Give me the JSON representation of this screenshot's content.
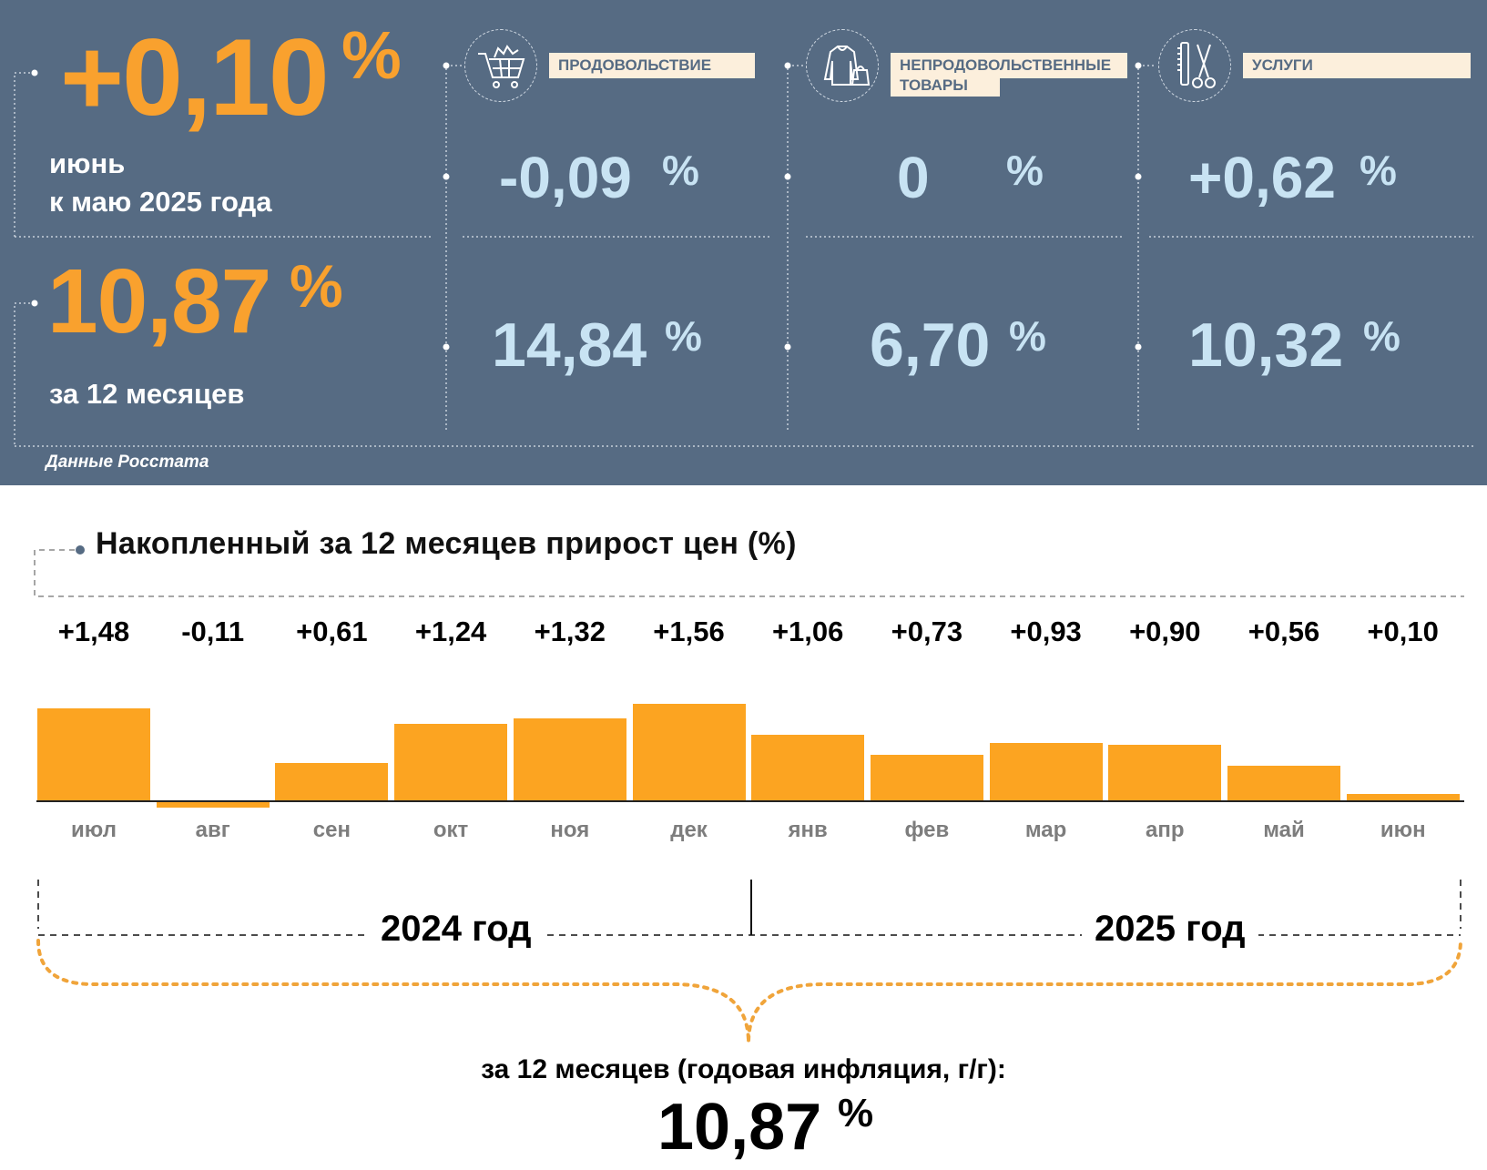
{
  "summary": {
    "month_change": "+0,10",
    "month_pct": "%",
    "month_caption_line1": "июнь",
    "month_caption_line2": "к маю 2025 года",
    "annual_change": "10,87",
    "annual_pct": "%",
    "annual_caption": "за 12 месяцев",
    "source": "Данные Росстата"
  },
  "categories": [
    {
      "label": "ПРОДОВОЛЬСТВИЕ",
      "icon": "shopping-cart-icon",
      "monthly": "-0,09",
      "annual": "14,84"
    },
    {
      "label_line1": "НЕПРОДОВОЛЬСТВЕННЫЕ",
      "label_line2": "ТОВАРЫ",
      "icon": "clothes-bag-icon",
      "monthly": "0",
      "annual": "6,70"
    },
    {
      "label": "УСЛУГИ",
      "icon": "comb-scissors-icon",
      "monthly": "+0,62",
      "annual": "10,32"
    }
  ],
  "pct_sign": "%",
  "chart_data": {
    "type": "bar",
    "title": "Накопленный за 12 месяцев прирост цен (%)",
    "categories": [
      "июл",
      "авг",
      "сен",
      "окт",
      "ноя",
      "дек",
      "янв",
      "фев",
      "мар",
      "апр",
      "май",
      "июн"
    ],
    "values": [
      1.48,
      -0.11,
      0.61,
      1.24,
      1.32,
      1.56,
      1.06,
      0.73,
      0.93,
      0.9,
      0.56,
      0.1
    ],
    "value_labels": [
      "+1,48",
      "-0,11",
      "+0,61",
      "+1,24",
      "+1,32",
      "+1,56",
      "+1,06",
      "+0,73",
      "+0,93",
      "+0,90",
      "+0,56",
      "+0,10"
    ],
    "year_labels": [
      "2024 год",
      "2025 год"
    ],
    "annual_caption": "за 12 месяцев (годовая инфляция, г/г):",
    "annual_value": "10,87",
    "annual_pct": "%",
    "colors": {
      "bar": "#fca421",
      "panel": "#566b83",
      "accent": "#f9a12e",
      "light_blue": "#c8e3f3"
    }
  }
}
